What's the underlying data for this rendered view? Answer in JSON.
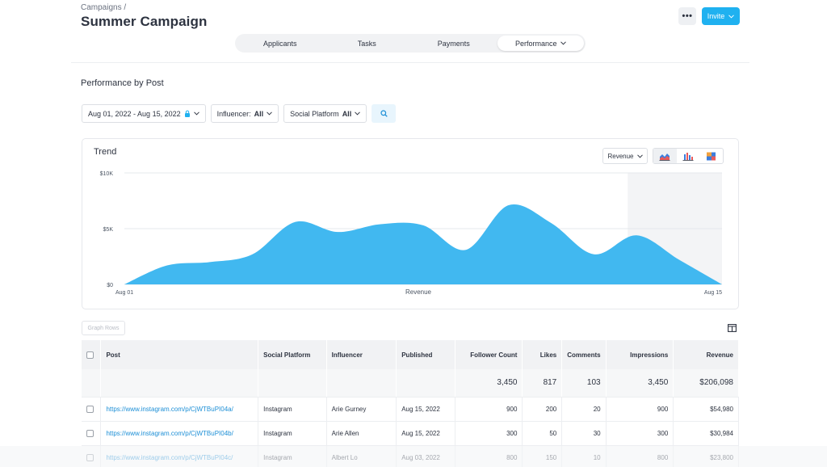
{
  "header": {
    "breadcrumb": "Campaigns /",
    "title": "Summer Campaign",
    "more_label": "•••",
    "invite_label": "Invite"
  },
  "tabs": [
    {
      "label": "Applicants",
      "active": false
    },
    {
      "label": "Tasks",
      "active": false
    },
    {
      "label": "Payments",
      "active": false
    },
    {
      "label": "Performance",
      "active": true
    }
  ],
  "section_title": "Performance by Post",
  "filters": {
    "date_range": "Aug 01, 2022 - Aug 15, 2022",
    "influencer_label": "Influencer:",
    "influencer_value": "All",
    "platform_label": "Social Platform",
    "platform_value": "All"
  },
  "trend": {
    "title": "Trend",
    "metric_select": "Revenue"
  },
  "chart_data": {
    "type": "area",
    "title": "Trend",
    "xlabel": "Revenue",
    "ylabel": "",
    "y_ticks": [
      "$0",
      "$5K",
      "$10K"
    ],
    "x_tick_labels": [
      "Aug 01",
      "Aug 15"
    ],
    "ylim": [
      0,
      10000
    ],
    "x": [
      "Aug 01",
      "Aug 02",
      "Aug 03",
      "Aug 04",
      "Aug 05",
      "Aug 06",
      "Aug 07",
      "Aug 08",
      "Aug 09",
      "Aug 10",
      "Aug 11",
      "Aug 12",
      "Aug 13",
      "Aug 14",
      "Aug 15"
    ],
    "series": [
      {
        "values": [
          0,
          1700,
          2000,
          2700,
          5600,
          4700,
          5400,
          5300,
          3100,
          7100,
          5500,
          2700,
          4400,
          2200,
          0
        ]
      }
    ],
    "highlight_range": [
      "Aug 13",
      "Aug 15"
    ],
    "grid": true,
    "color": "#41b8f0"
  },
  "graph_rows_label": "Graph Rows",
  "table": {
    "columns": [
      "Post",
      "Social Platform",
      "Influencer",
      "Published",
      "Follower Count",
      "Likes",
      "Comments",
      "Impressions",
      "Revenue"
    ],
    "totals": [
      "3,450",
      "817",
      "103",
      "3,450",
      "$206,098"
    ],
    "rows": [
      {
        "post": "https://www.instagram.com/p/CjWTBuPI04a/",
        "platform": "Instagram",
        "influencer": "Arie Gurney",
        "published": "Aug 15, 2022",
        "followers": "900",
        "likes": "200",
        "comments": "20",
        "impressions": "900",
        "revenue": "$54,980"
      },
      {
        "post": "https://www.instagram.com/p/CjWTBuPI04b/",
        "platform": "Instagram",
        "influencer": "Arie Allen",
        "published": "Aug 15, 2022",
        "followers": "300",
        "likes": "50",
        "comments": "30",
        "impressions": "300",
        "revenue": "$30,984"
      },
      {
        "post": "https://www.instagram.com/p/CjWTBuPI04c/",
        "platform": "Instagram",
        "influencer": "Albert Lo",
        "published": "Aug 03, 2022",
        "followers": "800",
        "likes": "150",
        "comments": "10",
        "impressions": "800",
        "revenue": "$23,800"
      }
    ]
  }
}
